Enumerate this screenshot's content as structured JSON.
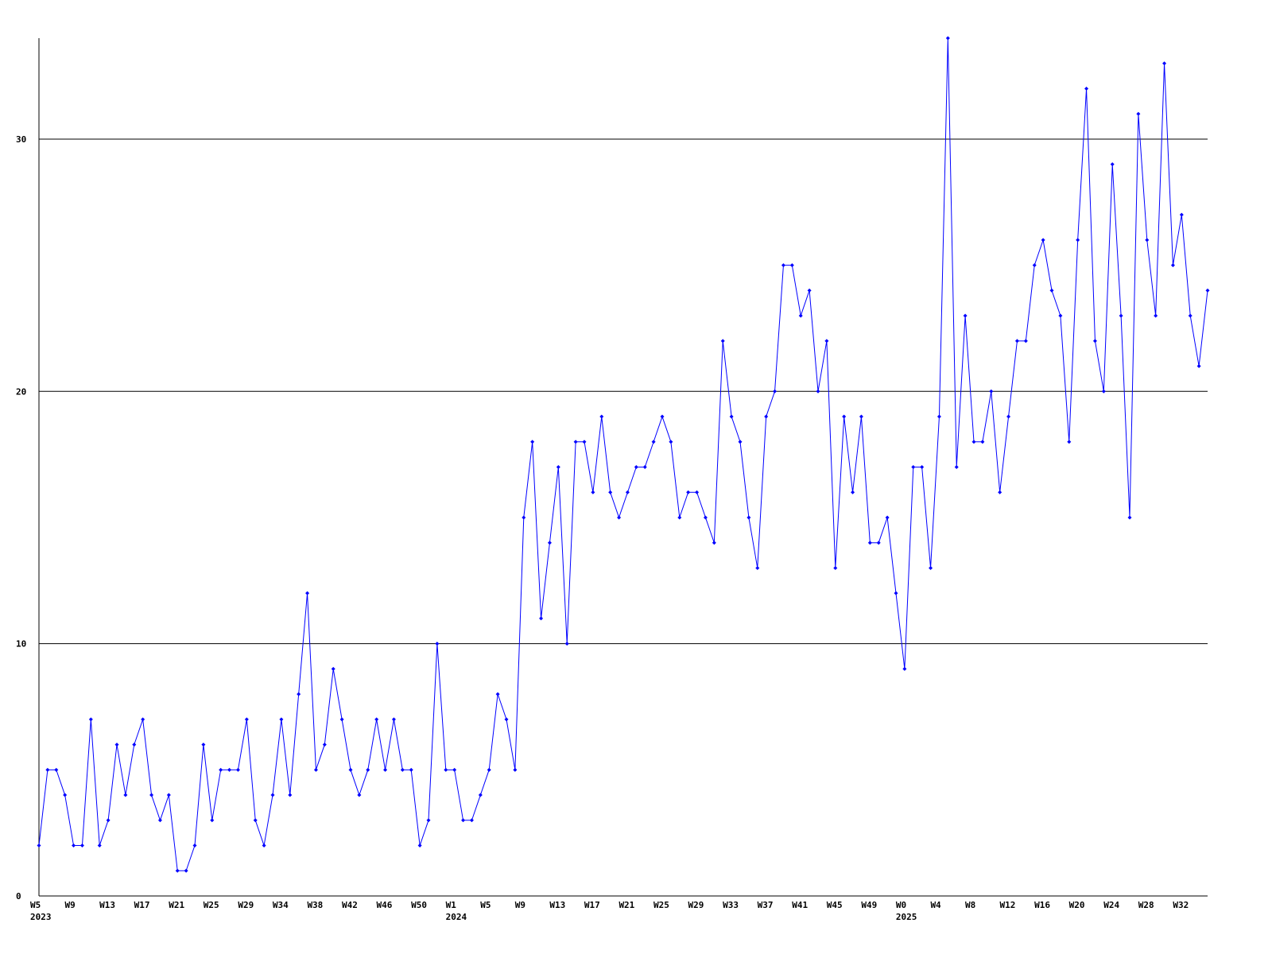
{
  "chart_data": {
    "type": "line",
    "categories": [
      "W5",
      null,
      null,
      null,
      "W9",
      null,
      null,
      null,
      "W13",
      null,
      null,
      null,
      "W17",
      null,
      null,
      null,
      "W21",
      null,
      null,
      null,
      "W25",
      null,
      null,
      null,
      "W29",
      null,
      null,
      null,
      "W34",
      null,
      null,
      null,
      "W38",
      null,
      null,
      null,
      "W42",
      null,
      null,
      null,
      "W46",
      null,
      null,
      null,
      "W50",
      null,
      null,
      null,
      "W1",
      null,
      null,
      null,
      "W5",
      null,
      null,
      null,
      "W9",
      null,
      null,
      null,
      "W13",
      null,
      null,
      null,
      "W17",
      null,
      null,
      null,
      "W21",
      null,
      null,
      null,
      "W25",
      null,
      null,
      null,
      "W29",
      null,
      null,
      null,
      "W33",
      null,
      null,
      null,
      "W37",
      null,
      null,
      null,
      "W41",
      null,
      null,
      null,
      "W45",
      null,
      null,
      null,
      "W49",
      null,
      null,
      null,
      "W0",
      null,
      null,
      null,
      "W4",
      null,
      null,
      null,
      "W8",
      null,
      null,
      null,
      "W12",
      null,
      null,
      null,
      "W16",
      null,
      null,
      null,
      "W20",
      null,
      null,
      null,
      "W24",
      null,
      null,
      null,
      "W28",
      null,
      null,
      null,
      "W32",
      null,
      null,
      null
    ],
    "year_labels": [
      "2023",
      null,
      null,
      null,
      null,
      null,
      null,
      null,
      null,
      null,
      null,
      null,
      null,
      null,
      null,
      null,
      null,
      null,
      null,
      null,
      null,
      null,
      null,
      null,
      null,
      null,
      null,
      null,
      null,
      null,
      null,
      null,
      null,
      null,
      null,
      null,
      null,
      null,
      null,
      null,
      null,
      null,
      null,
      null,
      null,
      null,
      null,
      null,
      "2024",
      null,
      null,
      null,
      null,
      null,
      null,
      null,
      null,
      null,
      null,
      null,
      null,
      null,
      null,
      null,
      null,
      null,
      null,
      null,
      null,
      null,
      null,
      null,
      null,
      null,
      null,
      null,
      null,
      null,
      null,
      null,
      null,
      null,
      null,
      null,
      null,
      null,
      null,
      null,
      null,
      null,
      null,
      null,
      null,
      null,
      null,
      null,
      null,
      null,
      null,
      null,
      "2025",
      null,
      null,
      null,
      null,
      null,
      null,
      null,
      null,
      null,
      null,
      null,
      null,
      null,
      null,
      null,
      null,
      null,
      null,
      null,
      null,
      null,
      null,
      null,
      null,
      null,
      null,
      null,
      null,
      null,
      null,
      null,
      null,
      null,
      null,
      null
    ],
    "series": [
      {
        "color": "#0000ff",
        "values": [
          2,
          5,
          5,
          4,
          2,
          2,
          7,
          2,
          3,
          6,
          4,
          6,
          7,
          4,
          3,
          4,
          1,
          1,
          2,
          6,
          3,
          5,
          5,
          5,
          7,
          3,
          2,
          4,
          7,
          4,
          8,
          12,
          5,
          6,
          9,
          7,
          5,
          4,
          5,
          7,
          5,
          7,
          5,
          5,
          2,
          3,
          10,
          5,
          5,
          3,
          3,
          4,
          5,
          8,
          7,
          5,
          15,
          18,
          11,
          14,
          17,
          10,
          18,
          18,
          16,
          19,
          16,
          15,
          16,
          17,
          17,
          18,
          19,
          18,
          15,
          16,
          16,
          15,
          14,
          22,
          19,
          18,
          15,
          13,
          19,
          20,
          25,
          25,
          23,
          24,
          20,
          22,
          13,
          19,
          16,
          19,
          14,
          14,
          15,
          12,
          9,
          17,
          17,
          13,
          19,
          34,
          17,
          23,
          18,
          18,
          20,
          16,
          19,
          22,
          22,
          25,
          26,
          24,
          23,
          18,
          26,
          32,
          22,
          20,
          29,
          23,
          15,
          31,
          26,
          23,
          33,
          25,
          27,
          23,
          21,
          24
        ]
      }
    ],
    "ylim": [
      0,
      34
    ],
    "yticks": [
      0,
      10,
      20,
      30
    ],
    "grid": true
  }
}
